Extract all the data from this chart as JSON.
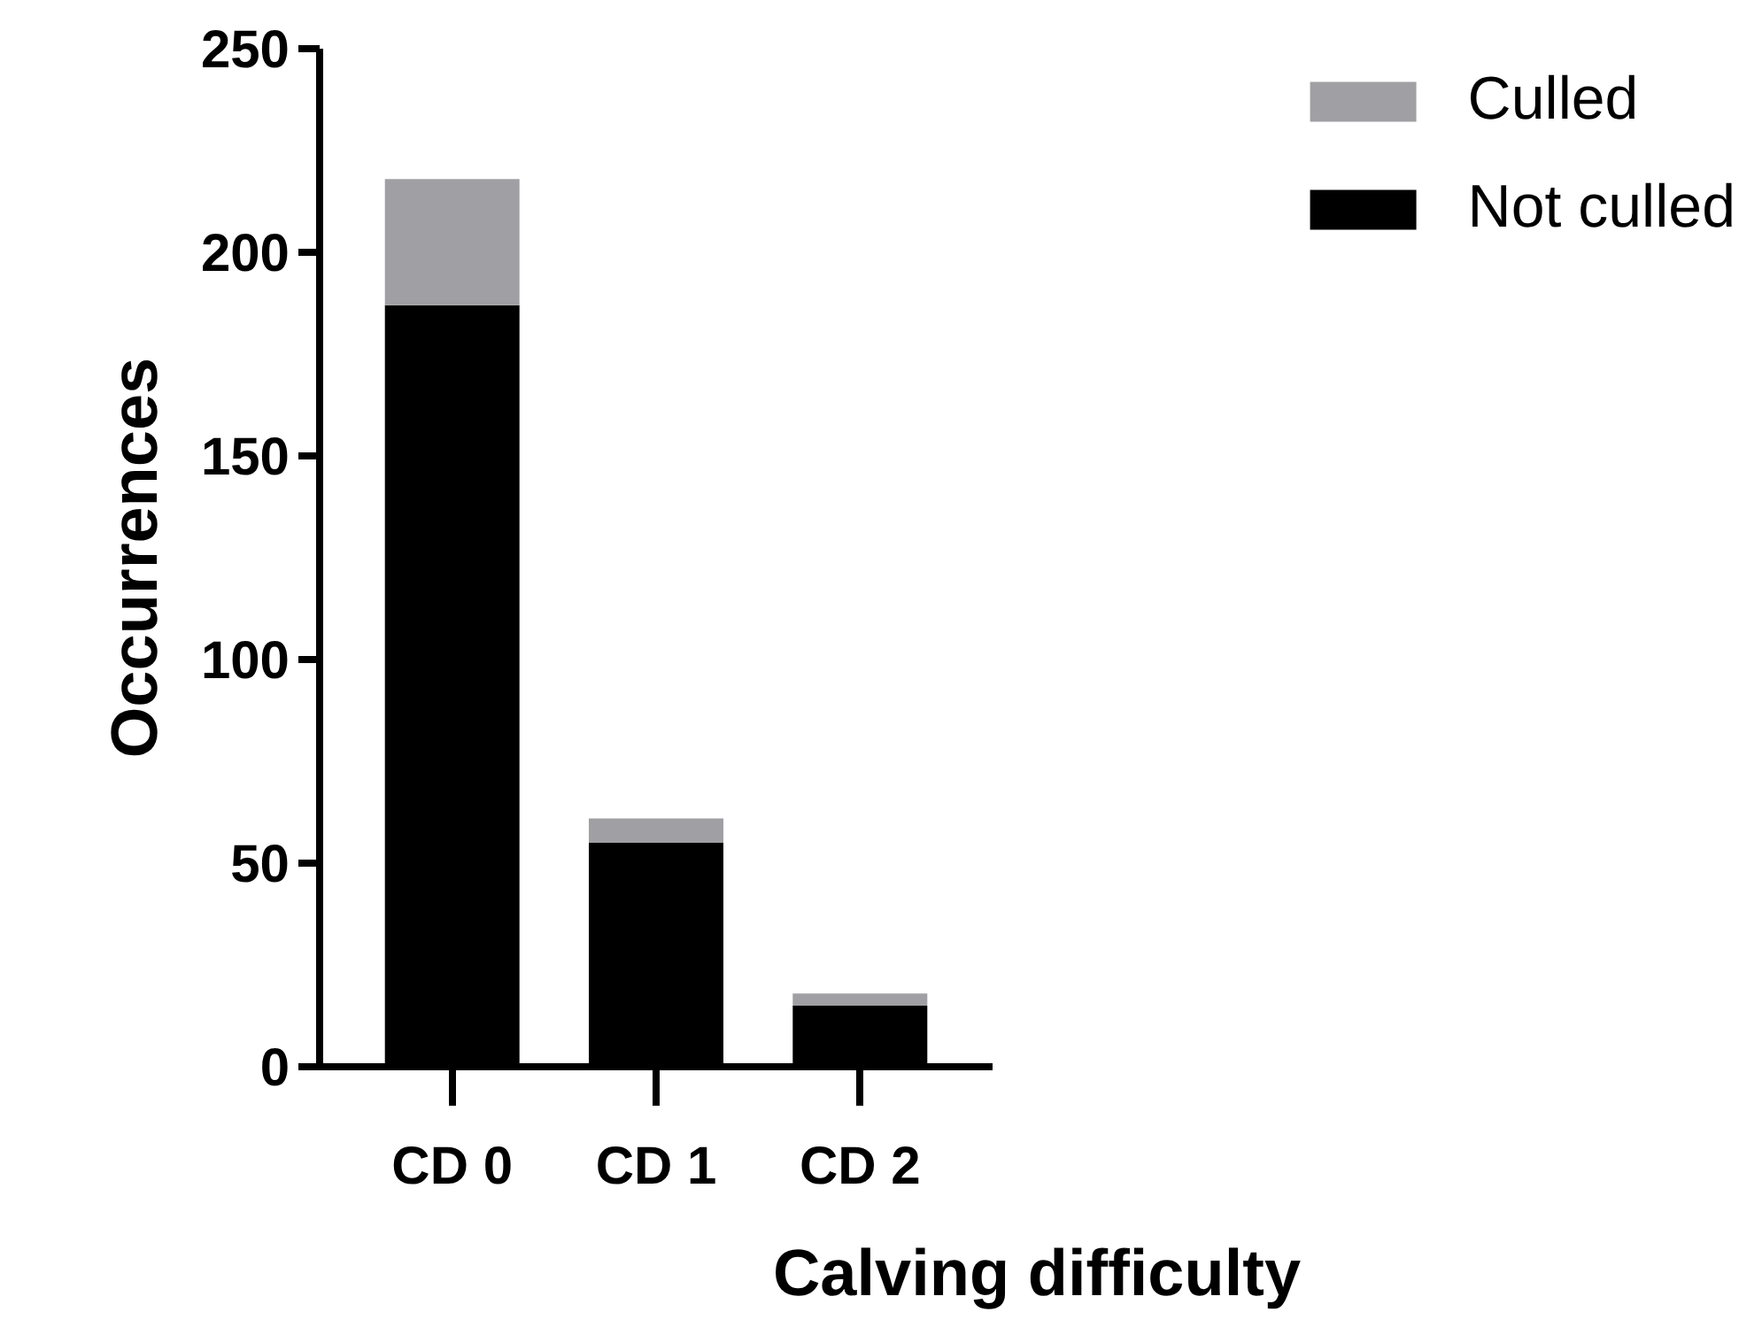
{
  "chart_data": {
    "type": "bar",
    "stacked": true,
    "xlabel": "Calving difficulty",
    "ylabel": "Occurrences",
    "categories": [
      "CD 0",
      "CD 1",
      "CD 2"
    ],
    "series": [
      {
        "name": "Not culled",
        "color": "#000000",
        "values": [
          187,
          55,
          15
        ]
      },
      {
        "name": "Culled",
        "color": "#a0a0a4",
        "values": [
          31,
          6,
          3
        ]
      }
    ],
    "ylim": [
      0,
      250
    ],
    "yticks": [
      0,
      50,
      100,
      150,
      200,
      250
    ],
    "grid": false,
    "legend": "top right"
  }
}
